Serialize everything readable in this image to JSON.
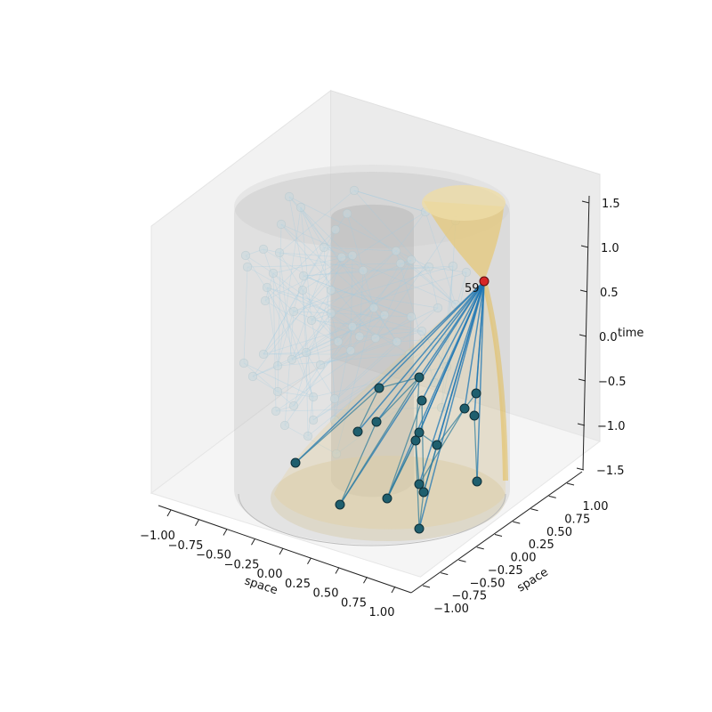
{
  "chart_data": {
    "type": "scatter",
    "title": "",
    "axes": {
      "x": {
        "label": "space",
        "ticks": [
          "−1.00",
          "−0.75",
          "−0.50",
          "−0.25",
          "0.00",
          "0.25",
          "0.50",
          "0.75",
          "1.00"
        ],
        "range": [
          -1,
          1
        ]
      },
      "y": {
        "label": "space",
        "ticks": [
          "−1.00",
          "−0.75",
          "−0.50",
          "−0.25",
          "0.00",
          "0.25",
          "0.50",
          "0.75",
          "1.00"
        ],
        "range": [
          -1,
          1
        ]
      },
      "z": {
        "label": "time",
        "ticks": [
          "−1.5",
          "−1.0",
          "−0.5",
          "0.0",
          "0.5",
          "1.0",
          "1.5"
        ],
        "range": [
          -1.5,
          1.5
        ]
      }
    },
    "highlight": {
      "label": "59",
      "color": "#d62728"
    },
    "colors": {
      "past_node": "#1f5f6e",
      "past_edge": "#1f77b4",
      "faint_node": "#c8d8de",
      "faint_edge": "#9ecae1",
      "light_cone": "#e6c879",
      "cylinder": "#b4b4b4"
    }
  }
}
